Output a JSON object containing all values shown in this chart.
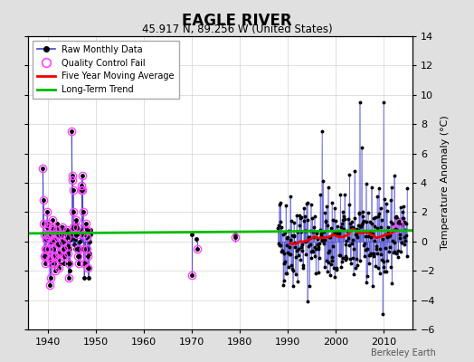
{
  "title": "EAGLE RIVER",
  "subtitle": "45.917 N, 89.256 W (United States)",
  "ylabel": "Temperature Anomaly (°C)",
  "attribution": "Berkeley Earth",
  "ylim": [
    -6,
    14
  ],
  "yticks": [
    -6,
    -4,
    -2,
    0,
    2,
    4,
    6,
    8,
    10,
    12,
    14
  ],
  "xlim": [
    1936,
    2016
  ],
  "xticks": [
    1940,
    1950,
    1960,
    1970,
    1980,
    1990,
    2000,
    2010
  ],
  "bg_color": "#e0e0e0",
  "plot_bg_color": "#ffffff",
  "grid_color": "#c8c8c8",
  "raw_line_color": "#4444cc",
  "raw_dot_color": "#000000",
  "qc_fail_color": "#ff44ff",
  "moving_avg_color": "#ee0000",
  "trend_color": "#00bb00",
  "trend_x": [
    1936,
    2016
  ],
  "trend_y": [
    0.55,
    0.75
  ]
}
